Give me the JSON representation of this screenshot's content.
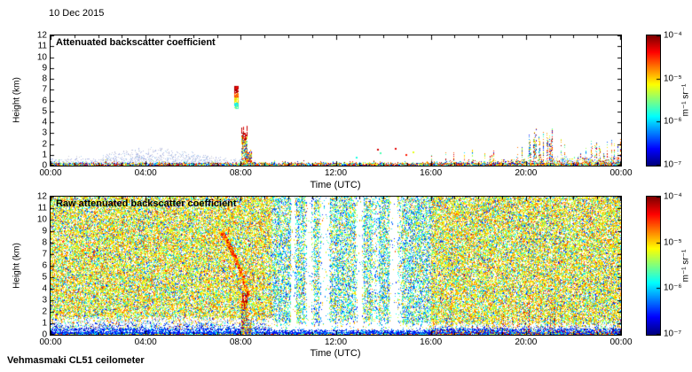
{
  "page": {
    "date_label": "10 Dec 2015",
    "footer_label": "Vehmasmaki CL51 ceilometer"
  },
  "chart_data": [
    {
      "type": "heatmap",
      "panel": "top",
      "title": "Attenuated backscatter coefficient",
      "xlabel": "Time (UTC)",
      "ylabel": "Height (km)",
      "x_tick_labels": [
        "00:00",
        "04:00",
        "08:00",
        "12:00",
        "16:00",
        "20:00",
        "00:00"
      ],
      "x_tick_hours": [
        0,
        4,
        8,
        12,
        16,
        20,
        24
      ],
      "xlim_hours": [
        0,
        24
      ],
      "y_tick_labels": [
        "0",
        "1",
        "2",
        "3",
        "4",
        "5",
        "6",
        "7",
        "8",
        "9",
        "10",
        "11",
        "12"
      ],
      "ylim_km": [
        0,
        12
      ],
      "grid": false,
      "colormap": "jet",
      "colorbar": {
        "tick_labels": [
          "10⁻⁴",
          "10⁻⁵",
          "10⁻⁶",
          "10⁻⁷"
        ],
        "units": "m⁻¹ sr⁻¹",
        "scale": "log",
        "value_range": [
          "1e-7",
          "1e-4"
        ],
        "position": "right"
      },
      "features": [
        {
          "name": "surface-aerosol-layer",
          "hours": [
            0,
            24
          ],
          "km": [
            0,
            0.5
          ],
          "description": "dense multicolour near-surface returns along whole day"
        },
        {
          "name": "faint-aerosol-haze",
          "hours": [
            1.5,
            8.6
          ],
          "km": [
            0,
            1.5
          ],
          "description": "faint blue-grey aerosol layer, deepest near 04:00-05:00"
        },
        {
          "name": "elevated-cloud-streak",
          "hours": [
            7.75,
            7.95
          ],
          "km": [
            5.3,
            7.3
          ],
          "description": "narrow elevated cloud echo, red-orange top, green-yellow base"
        },
        {
          "name": "precipitation-column",
          "hours": [
            8.05,
            8.5
          ],
          "km": [
            0,
            3.3
          ],
          "description": "mixed-colour precipitation column with red cap near 3 km"
        },
        {
          "name": "isolated-specks",
          "hours": [
            13.5,
            15.3
          ],
          "km": [
            0.8,
            1.8
          ],
          "description": "sparse isolated echoes near 1-1.6 km"
        },
        {
          "name": "evening-boundary-layer",
          "hours": [
            15.5,
            24
          ],
          "km": [
            0,
            3.6
          ],
          "description": "spiky multicolour boundary-layer returns, strongest 20:00-21:00"
        }
      ]
    },
    {
      "type": "heatmap",
      "panel": "bottom",
      "title": "Raw attenuated backscatter coefficient",
      "xlabel": "Time (UTC)",
      "ylabel": "Height (km)",
      "x_tick_labels": [
        "00:00",
        "04:00",
        "08:00",
        "12:00",
        "16:00",
        "20:00",
        "00:00"
      ],
      "x_tick_hours": [
        0,
        4,
        8,
        12,
        16,
        20,
        24
      ],
      "xlim_hours": [
        0,
        24
      ],
      "y_tick_labels": [
        "0",
        "1",
        "2",
        "3",
        "4",
        "5",
        "6",
        "7",
        "8",
        "9",
        "10",
        "11",
        "12"
      ],
      "ylim_km": [
        0,
        12
      ],
      "grid": false,
      "colormap": "jet",
      "colorbar": {
        "tick_labels": [
          "10⁻⁴",
          "10⁻⁵",
          "10⁻⁶",
          "10⁻⁷"
        ],
        "units": "m⁻¹ sr⁻¹",
        "scale": "log",
        "value_range": [
          "1e-7",
          "1e-4"
        ],
        "position": "right"
      },
      "features": [
        {
          "name": "background-noise",
          "hours": [
            0,
            24
          ],
          "km": [
            1.2,
            12
          ],
          "description": "dense green/cyan instrument noise filling free troposphere"
        },
        {
          "name": "blue-noise-period",
          "hours": [
            9.3,
            16
          ],
          "km": [
            0.5,
            12
          ],
          "description": "sparser bluish noise period in midday"
        },
        {
          "name": "white-dropout-stripes",
          "hours": [
            10.1,
            14.75
          ],
          "km": [
            0.5,
            12
          ],
          "description": "vertical white dropout stripes"
        },
        {
          "name": "descending-virga-streak",
          "hours": [
            7.2,
            8.35
          ],
          "km": [
            3.3,
            8.8
          ],
          "description": "yellow-green streak descending from 8.8 km to 3.3 km"
        },
        {
          "name": "precipitation-column",
          "hours": [
            8.05,
            8.5
          ],
          "km": [
            0,
            3.3
          ],
          "description": "multicolour precipitation column"
        },
        {
          "name": "surface-blue-band",
          "hours": [
            0,
            24
          ],
          "km": [
            0,
            0.8
          ],
          "description": "blue near-surface band, thicker before 09:00"
        },
        {
          "name": "evening-surface-activity",
          "hours": [
            16,
            24
          ],
          "km": [
            0,
            3.2
          ],
          "description": "colourful spiky surface returns in evening"
        }
      ]
    }
  ]
}
